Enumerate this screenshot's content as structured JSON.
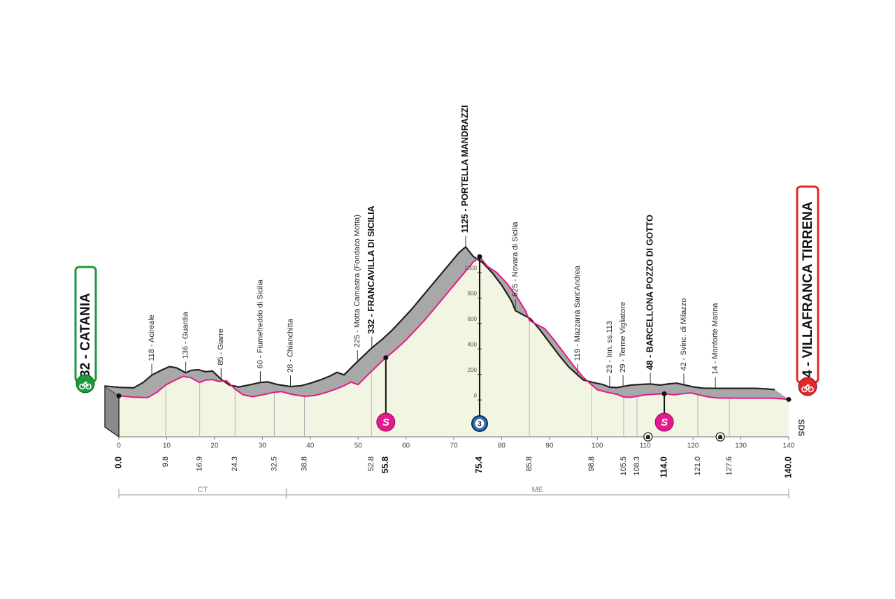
{
  "chart_data": {
    "type": "area",
    "x": [
      0,
      3,
      6,
      8,
      9.8,
      12,
      13.5,
      15,
      16.9,
      18,
      19.5,
      21,
      22.5,
      24.3,
      26,
      28,
      30,
      32.5,
      34,
      36,
      38.8,
      41,
      43,
      45,
      47,
      48.5,
      50,
      52.8,
      55.8,
      58,
      60,
      62,
      64,
      66,
      68,
      70,
      72,
      74,
      75.4,
      77,
      79,
      81,
      83,
      85,
      85.8,
      87,
      89,
      91,
      93,
      95,
      97,
      98.8,
      100,
      102,
      104,
      105.5,
      107,
      108.3,
      110,
      112,
      114,
      116,
      118,
      119.5,
      121,
      123,
      125,
      127.6,
      132,
      136,
      138,
      140
    ],
    "values": [
      32,
      22,
      18,
      60,
      118,
      160,
      185,
      175,
      136,
      155,
      160,
      145,
      150,
      85,
      40,
      25,
      40,
      60,
      65,
      45,
      28,
      35,
      55,
      80,
      110,
      140,
      120,
      225,
      332,
      400,
      470,
      550,
      630,
      720,
      810,
      900,
      990,
      1080,
      1125,
      1050,
      1000,
      920,
      820,
      700,
      625,
      600,
      560,
      470,
      370,
      270,
      180,
      119,
      80,
      60,
      45,
      23,
      20,
      29,
      40,
      45,
      48,
      40,
      50,
      55,
      42,
      25,
      15,
      14,
      14,
      14,
      10,
      4
    ],
    "color": "#e5188d",
    "xlim": [
      0,
      140
    ],
    "ylim": [
      -290,
      1000
    ],
    "xticks": [
      0,
      10,
      20,
      30,
      40,
      50,
      60,
      70,
      80,
      90,
      100,
      110,
      120,
      130,
      140
    ],
    "yticks": [
      0,
      200,
      400,
      600,
      800,
      1000
    ],
    "start": {
      "km": {
        "value": 0,
        "label": "0.0"
      },
      "name": "32 - CATANIA",
      "color": "#1a9a3a"
    },
    "finish": {
      "km": {
        "value": 140,
        "label": "140.0"
      },
      "name": "4 - VILLAFRANCA TIRRENA",
      "color": "#e3262b"
    },
    "waypoints": [
      {
        "km": {
          "value": 9.8,
          "label": "9.8"
        },
        "name": "118 - Acireale"
      },
      {
        "km": {
          "value": 16.9,
          "label": "16.9"
        },
        "name": "136 - Guardia"
      },
      {
        "km": {
          "value": 24.3,
          "label": "24.3"
        },
        "name": "85 - Giarre"
      },
      {
        "km": {
          "value": 32.5,
          "label": "32.5"
        },
        "name": "60 - Fiumefreddo di Sicilia"
      },
      {
        "km": {
          "value": 38.8,
          "label": "38.8"
        },
        "name": "28 - Chianchitta"
      },
      {
        "km": {
          "value": 52.8,
          "label": "52.8"
        },
        "name": "225 - Motta Camastra (Fondaco Motta)"
      },
      {
        "km": {
          "value": 55.8,
          "label": "55.8"
        },
        "name": "332 - FRANCAVILLA DI SICILIA",
        "bold": true,
        "sprint": "S"
      },
      {
        "km": {
          "value": 75.4,
          "label": "75.4"
        },
        "name": "1125 - PORTELLA MANDRAZZI",
        "bold": true,
        "kom": "3"
      },
      {
        "km": {
          "value": 85.8,
          "label": "85.8"
        },
        "name": "625 - Novara di Sicilia"
      },
      {
        "km": {
          "value": 98.8,
          "label": "98.8"
        },
        "name": "119 - Mazzarrà Sant'Andrea"
      },
      {
        "km": {
          "value": 105.5,
          "label": "105.5"
        },
        "name": "23 - Inn. ss.113"
      },
      {
        "km": {
          "value": 108.3,
          "label": "108.3"
        },
        "name": "29 - Terme Vigliatore"
      },
      {
        "km": {
          "value": 114,
          "label": "114.0"
        },
        "name": "48 - BARCELLONA POZZO DI GOTTO",
        "bold": true,
        "sprint": "S"
      },
      {
        "km": {
          "value": 121,
          "label": "121.0"
        },
        "name": "42 - Svinc. di Milazzo"
      },
      {
        "km": {
          "value": 127.6,
          "label": "127.6"
        },
        "name": "14 - Monforte Marina"
      }
    ],
    "tunnels": [
      110.6,
      125.7
    ],
    "provinces": [
      {
        "name": "CT",
        "from": 0,
        "to": 35
      },
      {
        "name": "ME",
        "from": 35,
        "to": 140
      }
    ],
    "logo": "SDS"
  }
}
